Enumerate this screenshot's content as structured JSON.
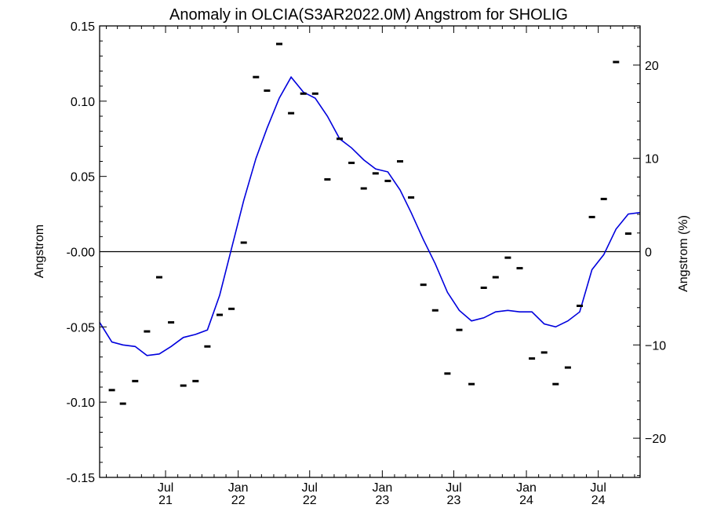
{
  "chart_data": {
    "type": "line",
    "title": "Anomaly in OLCIA(S3AR2022.0M) Angstrom for SHOLIG",
    "ylabel": "Angstrom",
    "ylabel_right": "Angstrom (%)",
    "xlim": [
      "2021-01-15",
      "2024-10-15"
    ],
    "ylim": [
      -0.15,
      0.15
    ],
    "ylim_right": [
      -24.2,
      24.2
    ],
    "grid": false,
    "zero_line": true,
    "line_color": "#0000dd",
    "marker_color": "#000000",
    "x_ticks": [
      {
        "date": "2021-07-01",
        "month": "Jul",
        "year": "21"
      },
      {
        "date": "2022-01-01",
        "month": "Jan",
        "year": "22"
      },
      {
        "date": "2022-07-01",
        "month": "Jul",
        "year": "22"
      },
      {
        "date": "2023-01-01",
        "month": "Jan",
        "year": "23"
      },
      {
        "date": "2023-07-01",
        "month": "Jul",
        "year": "23"
      },
      {
        "date": "2024-01-01",
        "month": "Jan",
        "year": "24"
      },
      {
        "date": "2024-07-01",
        "month": "Jul",
        "year": "24"
      }
    ],
    "y_ticks": [
      0.15,
      0.1,
      0.05,
      0.0,
      -0.05,
      -0.1,
      -0.15
    ],
    "y_tick_labels": [
      "0.15",
      "0.10",
      "0.05",
      "-0.00",
      "-0.05",
      "-0.10",
      "-0.15"
    ],
    "y_right_ticks": [
      20,
      10,
      0,
      -10,
      -20
    ],
    "y_right_tick_labels": [
      "20",
      "10",
      "0",
      "−10",
      "−20"
    ],
    "series": [
      {
        "kind": "markers",
        "points": [
          {
            "x": "2021-02-15",
            "y": -0.092
          },
          {
            "x": "2021-03-15",
            "y": -0.101
          },
          {
            "x": "2021-04-15",
            "y": -0.086
          },
          {
            "x": "2021-05-15",
            "y": -0.053
          },
          {
            "x": "2021-06-15",
            "y": -0.017
          },
          {
            "x": "2021-07-15",
            "y": -0.047
          },
          {
            "x": "2021-08-15",
            "y": -0.089
          },
          {
            "x": "2021-09-15",
            "y": -0.086
          },
          {
            "x": "2021-10-15",
            "y": -0.063
          },
          {
            "x": "2021-11-15",
            "y": -0.042
          },
          {
            "x": "2021-12-15",
            "y": -0.038
          },
          {
            "x": "2022-01-15",
            "y": 0.006
          },
          {
            "x": "2022-02-15",
            "y": 0.116
          },
          {
            "x": "2022-03-15",
            "y": 0.107
          },
          {
            "x": "2022-04-15",
            "y": 0.138
          },
          {
            "x": "2022-05-15",
            "y": 0.092
          },
          {
            "x": "2022-06-15",
            "y": 0.105
          },
          {
            "x": "2022-07-15",
            "y": 0.105
          },
          {
            "x": "2022-08-15",
            "y": 0.048
          },
          {
            "x": "2022-09-15",
            "y": 0.075
          },
          {
            "x": "2022-10-15",
            "y": 0.059
          },
          {
            "x": "2022-11-15",
            "y": 0.042
          },
          {
            "x": "2022-12-15",
            "y": 0.052
          },
          {
            "x": "2023-01-15",
            "y": 0.047
          },
          {
            "x": "2023-02-15",
            "y": 0.06
          },
          {
            "x": "2023-03-15",
            "y": 0.036
          },
          {
            "x": "2023-04-15",
            "y": -0.022
          },
          {
            "x": "2023-05-15",
            "y": -0.039
          },
          {
            "x": "2023-06-15",
            "y": -0.081
          },
          {
            "x": "2023-07-15",
            "y": -0.052
          },
          {
            "x": "2023-08-15",
            "y": -0.088
          },
          {
            "x": "2023-09-15",
            "y": -0.024
          },
          {
            "x": "2023-10-15",
            "y": -0.017
          },
          {
            "x": "2023-11-15",
            "y": -0.004
          },
          {
            "x": "2023-12-15",
            "y": -0.011
          },
          {
            "x": "2024-01-15",
            "y": -0.071
          },
          {
            "x": "2024-02-15",
            "y": -0.067
          },
          {
            "x": "2024-03-15",
            "y": -0.088
          },
          {
            "x": "2024-04-15",
            "y": -0.077
          },
          {
            "x": "2024-05-15",
            "y": -0.036
          },
          {
            "x": "2024-06-15",
            "y": 0.023
          },
          {
            "x": "2024-07-15",
            "y": 0.035
          },
          {
            "x": "2024-08-15",
            "y": 0.126
          },
          {
            "x": "2024-09-15",
            "y": 0.012
          }
        ]
      },
      {
        "kind": "line",
        "points": [
          {
            "x": "2021-01-15",
            "y": -0.047
          },
          {
            "x": "2021-02-15",
            "y": -0.06
          },
          {
            "x": "2021-03-15",
            "y": -0.062
          },
          {
            "x": "2021-04-15",
            "y": -0.063
          },
          {
            "x": "2021-05-15",
            "y": -0.069
          },
          {
            "x": "2021-06-15",
            "y": -0.068
          },
          {
            "x": "2021-07-15",
            "y": -0.063
          },
          {
            "x": "2021-08-15",
            "y": -0.057
          },
          {
            "x": "2021-09-15",
            "y": -0.055
          },
          {
            "x": "2021-10-15",
            "y": -0.052
          },
          {
            "x": "2021-11-15",
            "y": -0.029
          },
          {
            "x": "2021-12-15",
            "y": 0.002
          },
          {
            "x": "2022-01-15",
            "y": 0.034
          },
          {
            "x": "2022-02-15",
            "y": 0.062
          },
          {
            "x": "2022-03-15",
            "y": 0.082
          },
          {
            "x": "2022-04-15",
            "y": 0.102
          },
          {
            "x": "2022-05-15",
            "y": 0.116
          },
          {
            "x": "2022-06-15",
            "y": 0.106
          },
          {
            "x": "2022-07-15",
            "y": 0.102
          },
          {
            "x": "2022-08-15",
            "y": 0.09
          },
          {
            "x": "2022-09-15",
            "y": 0.075
          },
          {
            "x": "2022-10-15",
            "y": 0.069
          },
          {
            "x": "2022-11-15",
            "y": 0.061
          },
          {
            "x": "2022-12-15",
            "y": 0.055
          },
          {
            "x": "2023-01-15",
            "y": 0.053
          },
          {
            "x": "2023-02-15",
            "y": 0.041
          },
          {
            "x": "2023-03-15",
            "y": 0.026
          },
          {
            "x": "2023-04-15",
            "y": 0.008
          },
          {
            "x": "2023-05-15",
            "y": -0.008
          },
          {
            "x": "2023-06-15",
            "y": -0.027
          },
          {
            "x": "2023-07-15",
            "y": -0.039
          },
          {
            "x": "2023-08-15",
            "y": -0.046
          },
          {
            "x": "2023-09-15",
            "y": -0.044
          },
          {
            "x": "2023-10-15",
            "y": -0.04
          },
          {
            "x": "2023-11-15",
            "y": -0.039
          },
          {
            "x": "2023-12-15",
            "y": -0.04
          },
          {
            "x": "2024-01-15",
            "y": -0.04
          },
          {
            "x": "2024-02-15",
            "y": -0.048
          },
          {
            "x": "2024-03-15",
            "y": -0.05
          },
          {
            "x": "2024-04-15",
            "y": -0.046
          },
          {
            "x": "2024-05-15",
            "y": -0.04
          },
          {
            "x": "2024-06-15",
            "y": -0.012
          },
          {
            "x": "2024-07-15",
            "y": -0.002
          },
          {
            "x": "2024-08-15",
            "y": 0.015
          },
          {
            "x": "2024-09-15",
            "y": 0.025
          },
          {
            "x": "2024-10-15",
            "y": 0.026
          }
        ]
      }
    ]
  }
}
